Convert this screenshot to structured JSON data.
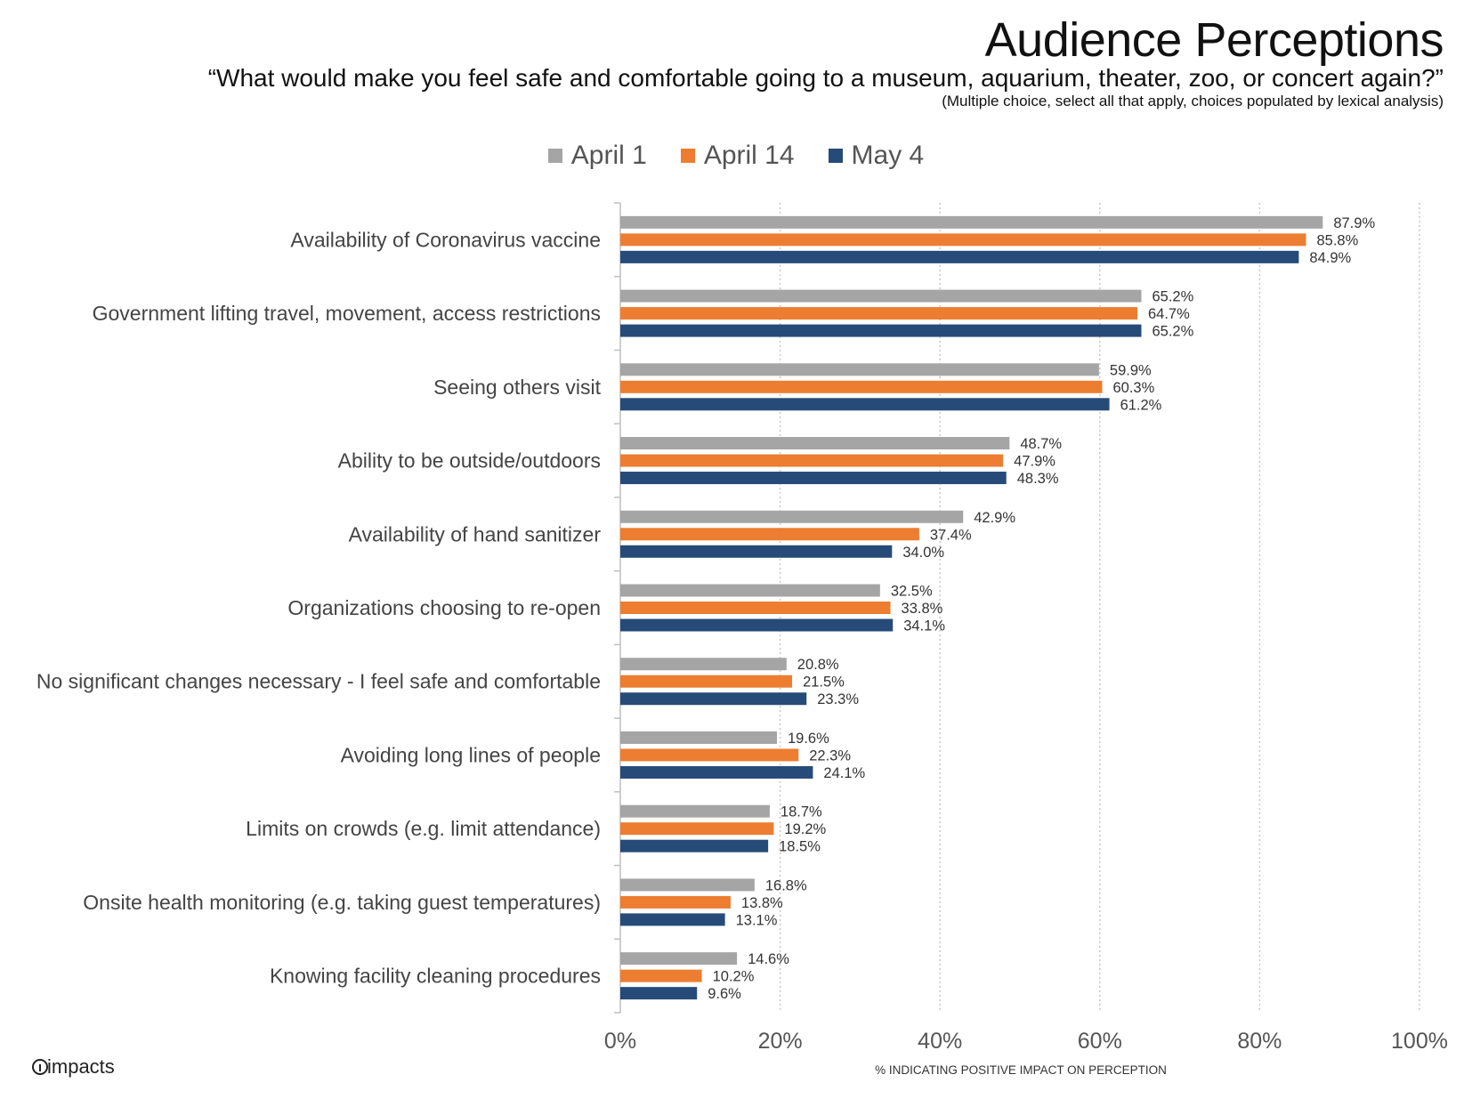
{
  "header": {
    "title": "Audience Perceptions",
    "subtitle": "“What would make you feel safe and comfortable going to a museum, aquarium, theater, zoo, or concert again?”",
    "note": "(Multiple choice, select all that apply, choices populated by lexical analysis)"
  },
  "brand": {
    "name": "impacts"
  },
  "colors": {
    "April 1": "#a5a5a5",
    "April 14": "#ed7d31",
    "May 4": "#264b78"
  },
  "chart_data": {
    "type": "bar",
    "orientation": "horizontal",
    "categories": [
      "Availability of Coronavirus vaccine",
      "Government lifting travel, movement, access restrictions",
      "Seeing others visit",
      "Ability to be outside/outdoors",
      "Availability of hand sanitizer",
      "Organizations choosing to re-open",
      "No significant changes necessary - I feel safe and comfortable",
      "Avoiding long lines of people",
      "Limits on crowds (e.g. limit attendance)",
      "Onsite health monitoring (e.g. taking guest temperatures)",
      "Knowing facility cleaning procedures"
    ],
    "series": [
      {
        "name": "April 1",
        "values": [
          87.9,
          65.2,
          59.9,
          48.7,
          42.9,
          32.5,
          20.8,
          19.6,
          18.7,
          16.8,
          14.6
        ],
        "labels": [
          "87.9%",
          "65.2%",
          "59.9%",
          "48.7%",
          "42.9%",
          "32.5%",
          "20.8%",
          "19.6%",
          "18.7%",
          "16.8%",
          "14.6%"
        ]
      },
      {
        "name": "April 14",
        "values": [
          85.8,
          64.7,
          60.3,
          47.9,
          37.4,
          33.8,
          21.5,
          22.3,
          19.2,
          13.8,
          10.2
        ],
        "labels": [
          "85.8%",
          "64.7%",
          "60.3%",
          "47.9%",
          "37.4%",
          "33.8%",
          "21.5%",
          "22.3%",
          "19.2%",
          "13.8%",
          "10.2%"
        ]
      },
      {
        "name": "May 4",
        "values": [
          84.9,
          65.2,
          61.2,
          48.3,
          34.0,
          34.1,
          23.3,
          24.1,
          18.5,
          13.1,
          9.6
        ],
        "labels": [
          "84.9%",
          "65.2%",
          "61.2%",
          "48.3%",
          "34.0%",
          "34.1%",
          "23.3%",
          "24.1%",
          "18.5%",
          "13.1%",
          "9.6%"
        ]
      }
    ],
    "xticks": [
      "0%",
      "20%",
      "40%",
      "60%",
      "80%",
      "100%"
    ],
    "xlim": [
      0,
      100
    ],
    "xlabel": "% INDICATING POSITIVE IMPACT ON PERCEPTION",
    "ylabel": "",
    "grid": "vertical dotted",
    "legend_position": "top-center"
  }
}
